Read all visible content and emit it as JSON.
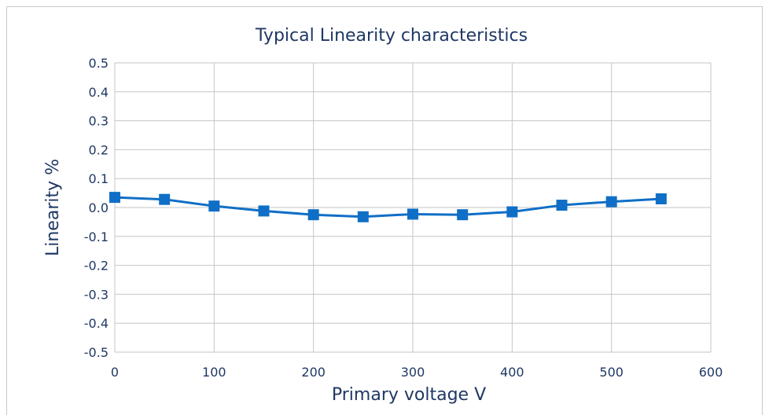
{
  "chart_data": {
    "type": "line",
    "title": "Typical Linearity characteristics",
    "xlabel": "Primary voltage V",
    "ylabel": "Linearity %",
    "xlim": [
      0,
      600
    ],
    "ylim": [
      -0.5,
      0.5
    ],
    "xticks": [
      "0",
      "100",
      "200",
      "300",
      "400",
      "500",
      "600"
    ],
    "yticks": [
      "0.5",
      "0.4",
      "0.3",
      "0.2",
      "0.1",
      "0.0",
      "-0.1",
      "-0.2",
      "-0.3",
      "-0.4",
      "-0.5"
    ],
    "grid": true,
    "marker": "square",
    "color": "#0f6fc6",
    "series": [
      {
        "x": [
          0,
          50,
          100,
          150,
          200,
          250,
          300,
          350,
          400,
          450,
          500,
          550
        ],
        "y": [
          0.035,
          0.028,
          0.005,
          -0.012,
          -0.025,
          -0.032,
          -0.023,
          -0.025,
          -0.015,
          0.008,
          0.02,
          0.03
        ]
      }
    ]
  }
}
